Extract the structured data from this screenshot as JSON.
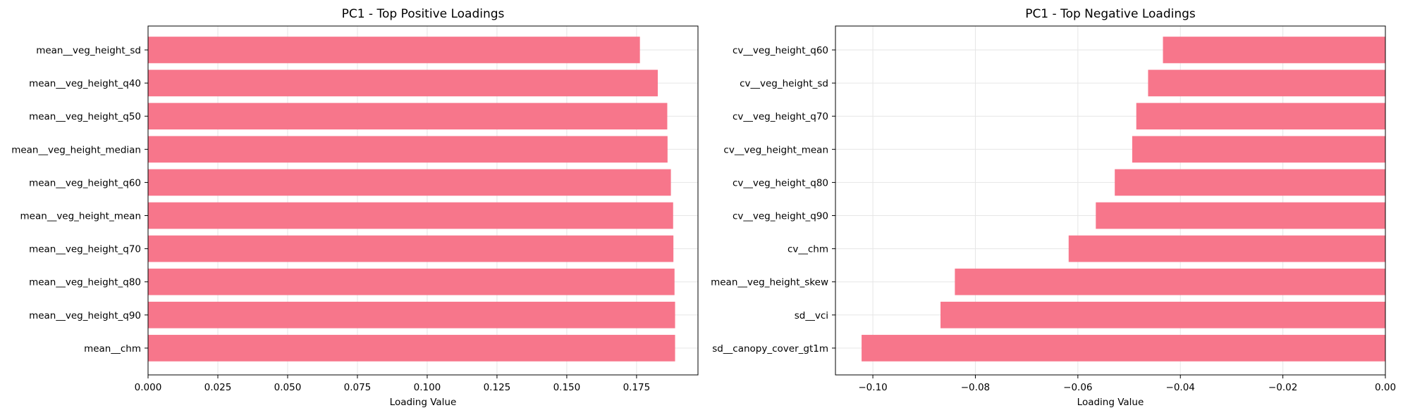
{
  "colors": {
    "bar": "#f7768b"
  },
  "chart_data": [
    {
      "type": "bar",
      "orientation": "horizontal",
      "title": "PC1 - Top Positive Loadings",
      "xlabel": "Loading Value",
      "ylabel": "",
      "grid": true,
      "xlim": [
        0,
        0.197
      ],
      "xticks": [
        0.0,
        0.025,
        0.05,
        0.075,
        0.1,
        0.125,
        0.15,
        0.175
      ],
      "xtick_labels": [
        "0.000",
        "0.025",
        "0.050",
        "0.075",
        "0.100",
        "0.125",
        "0.150",
        "0.175"
      ],
      "categories": [
        "mean__veg_height_sd",
        "mean__veg_height_q40",
        "mean__veg_height_q50",
        "mean__veg_height_median",
        "mean__veg_height_q60",
        "mean__veg_height_mean",
        "mean__veg_height_q70",
        "mean__veg_height_q80",
        "mean__veg_height_q90",
        "mean__chm"
      ],
      "values": [
        0.1762,
        0.1826,
        0.186,
        0.1861,
        0.1873,
        0.1881,
        0.1882,
        0.1886,
        0.1888,
        0.1888
      ]
    },
    {
      "type": "bar",
      "orientation": "horizontal",
      "title": "PC1 - Top Negative Loadings",
      "xlabel": "Loading Value",
      "ylabel": "",
      "grid": true,
      "xlim": [
        -0.1073,
        0.0
      ],
      "xticks": [
        -0.1,
        -0.08,
        -0.06,
        -0.04,
        -0.02,
        0.0
      ],
      "xtick_labels": [
        "−0.10",
        "−0.08",
        "−0.06",
        "−0.04",
        "−0.02",
        "0.00"
      ],
      "categories": [
        "cv__veg_height_q60",
        "cv__veg_height_sd",
        "cv__veg_height_q70",
        "cv__veg_height_mean",
        "cv__veg_height_q80",
        "cv__veg_height_q90",
        "cv__chm",
        "mean__veg_height_skew",
        "sd__vci",
        "sd__canopy_cover_gt1m"
      ],
      "values": [
        -0.0434,
        -0.0463,
        -0.0486,
        -0.0494,
        -0.0528,
        -0.0565,
        -0.0618,
        -0.084,
        -0.0868,
        -0.1022
      ]
    }
  ]
}
